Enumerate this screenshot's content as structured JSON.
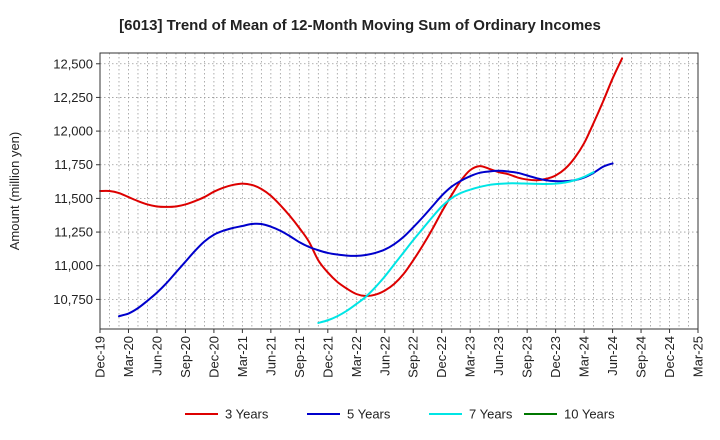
{
  "chart_data": {
    "type": "line",
    "title": "[6013]  Trend of Mean of 12-Month Moving Sum of Ordinary Incomes",
    "xlabel": "",
    "ylabel": "Amount (million yen)",
    "x_ticks": [
      "Dec-19",
      "Mar-20",
      "Jun-20",
      "Sep-20",
      "Dec-20",
      "Mar-21",
      "Jun-21",
      "Sep-21",
      "Dec-21",
      "Mar-22",
      "Jun-22",
      "Sep-22",
      "Dec-22",
      "Mar-23",
      "Jun-23",
      "Sep-23",
      "Dec-23",
      "Mar-24",
      "Jun-24",
      "Sep-24",
      "Dec-24",
      "Mar-25"
    ],
    "y_ticks": [
      10750,
      11000,
      11250,
      11500,
      11750,
      12000,
      12250,
      12500
    ],
    "y_tick_labels": [
      "10,750",
      "11,000",
      "11,250",
      "11,500",
      "11,750",
      "12,000",
      "12,250",
      "12,500"
    ],
    "ylim": [
      10530,
      12580
    ],
    "x_domain": [
      0,
      63
    ],
    "series": [
      {
        "name": "3 Years",
        "color": "#dd0000",
        "points": [
          [
            0,
            11555
          ],
          [
            1,
            11555
          ],
          [
            2,
            11540
          ],
          [
            3,
            11510
          ],
          [
            4,
            11480
          ],
          [
            5,
            11455
          ],
          [
            6,
            11440
          ],
          [
            7,
            11437
          ],
          [
            8,
            11440
          ],
          [
            9,
            11455
          ],
          [
            10,
            11480
          ],
          [
            11,
            11510
          ],
          [
            12,
            11550
          ],
          [
            13,
            11580
          ],
          [
            14,
            11600
          ],
          [
            15,
            11610
          ],
          [
            16,
            11600
          ],
          [
            17,
            11570
          ],
          [
            18,
            11520
          ],
          [
            19,
            11450
          ],
          [
            20,
            11370
          ],
          [
            21,
            11280
          ],
          [
            22,
            11180
          ],
          [
            23,
            11040
          ],
          [
            24,
            10950
          ],
          [
            25,
            10880
          ],
          [
            26,
            10830
          ],
          [
            27,
            10790
          ],
          [
            28,
            10775
          ],
          [
            29,
            10785
          ],
          [
            30,
            10815
          ],
          [
            31,
            10865
          ],
          [
            32,
            10940
          ],
          [
            33,
            11040
          ],
          [
            34,
            11150
          ],
          [
            35,
            11270
          ],
          [
            36,
            11400
          ],
          [
            37,
            11520
          ],
          [
            38,
            11630
          ],
          [
            39,
            11710
          ],
          [
            40,
            11740
          ],
          [
            41,
            11720
          ],
          [
            42,
            11695
          ],
          [
            43,
            11680
          ],
          [
            44,
            11655
          ],
          [
            45,
            11640
          ],
          [
            46,
            11635
          ],
          [
            47,
            11645
          ],
          [
            48,
            11670
          ],
          [
            49,
            11720
          ],
          [
            50,
            11800
          ],
          [
            51,
            11910
          ],
          [
            52,
            12060
          ],
          [
            53,
            12220
          ],
          [
            54,
            12390
          ],
          [
            55,
            12540
          ]
        ]
      },
      {
        "name": "5 Years",
        "color": "#0000cc",
        "points": [
          [
            2,
            10625
          ],
          [
            3,
            10645
          ],
          [
            4,
            10685
          ],
          [
            5,
            10740
          ],
          [
            6,
            10800
          ],
          [
            7,
            10870
          ],
          [
            8,
            10950
          ],
          [
            9,
            11030
          ],
          [
            10,
            11110
          ],
          [
            11,
            11180
          ],
          [
            12,
            11230
          ],
          [
            13,
            11260
          ],
          [
            14,
            11280
          ],
          [
            15,
            11295
          ],
          [
            16,
            11310
          ],
          [
            17,
            11310
          ],
          [
            18,
            11290
          ],
          [
            19,
            11260
          ],
          [
            20,
            11220
          ],
          [
            21,
            11175
          ],
          [
            22,
            11140
          ],
          [
            23,
            11115
          ],
          [
            24,
            11095
          ],
          [
            25,
            11083
          ],
          [
            26,
            11075
          ],
          [
            27,
            11073
          ],
          [
            28,
            11080
          ],
          [
            29,
            11095
          ],
          [
            30,
            11120
          ],
          [
            31,
            11160
          ],
          [
            32,
            11215
          ],
          [
            33,
            11285
          ],
          [
            34,
            11360
          ],
          [
            35,
            11440
          ],
          [
            36,
            11520
          ],
          [
            37,
            11585
          ],
          [
            38,
            11630
          ],
          [
            39,
            11665
          ],
          [
            40,
            11690
          ],
          [
            41,
            11700
          ],
          [
            42,
            11705
          ],
          [
            43,
            11700
          ],
          [
            44,
            11690
          ],
          [
            45,
            11670
          ],
          [
            46,
            11650
          ],
          [
            47,
            11635
          ],
          [
            48,
            11628
          ],
          [
            49,
            11628
          ],
          [
            50,
            11635
          ],
          [
            51,
            11655
          ],
          [
            52,
            11690
          ],
          [
            53,
            11735
          ],
          [
            54,
            11760
          ]
        ]
      },
      {
        "name": "7 Years",
        "color": "#00e5e5",
        "points": [
          [
            23,
            10575
          ],
          [
            24,
            10595
          ],
          [
            25,
            10625
          ],
          [
            26,
            10665
          ],
          [
            27,
            10715
          ],
          [
            28,
            10770
          ],
          [
            29,
            10840
          ],
          [
            30,
            10920
          ],
          [
            31,
            11010
          ],
          [
            32,
            11100
          ],
          [
            33,
            11190
          ],
          [
            34,
            11275
          ],
          [
            35,
            11360
          ],
          [
            36,
            11440
          ],
          [
            37,
            11500
          ],
          [
            38,
            11540
          ],
          [
            39,
            11565
          ],
          [
            40,
            11585
          ],
          [
            41,
            11600
          ],
          [
            42,
            11608
          ],
          [
            43,
            11612
          ],
          [
            44,
            11612
          ],
          [
            45,
            11610
          ],
          [
            46,
            11608
          ],
          [
            47,
            11607
          ],
          [
            48,
            11610
          ],
          [
            49,
            11618
          ],
          [
            50,
            11635
          ],
          [
            51,
            11660
          ],
          [
            52,
            11695
          ]
        ]
      },
      {
        "name": "10 Years",
        "color": "#007700",
        "points": []
      }
    ],
    "legend": [
      {
        "label": "3 Years",
        "color": "#dd0000"
      },
      {
        "label": "5 Years",
        "color": "#0000cc"
      },
      {
        "label": "7 Years",
        "color": "#00e5e5"
      },
      {
        "label": "10 Years",
        "color": "#007700"
      }
    ]
  }
}
